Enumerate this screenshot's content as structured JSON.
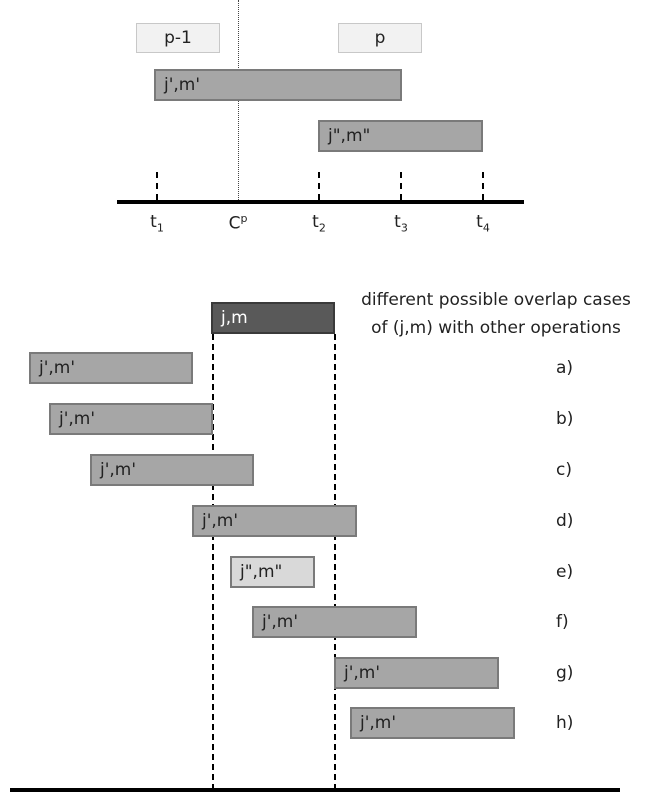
{
  "top": {
    "periods": {
      "prev": "p-1",
      "cur": "p"
    },
    "ops": {
      "a": "j',m'",
      "b": "j\",m\""
    },
    "ticks": [
      {
        "base": "t",
        "sub": "1",
        "sup": ""
      },
      {
        "base": "C",
        "sub": "",
        "sup": "p"
      },
      {
        "base": "t",
        "sub": "2",
        "sup": ""
      },
      {
        "base": "t",
        "sub": "3",
        "sup": ""
      },
      {
        "base": "t",
        "sub": "4",
        "sup": ""
      }
    ]
  },
  "bottom": {
    "main_op": "j,m",
    "caption_line1": "different possible overlap cases",
    "caption_line2": "of (j,m) with other operations",
    "cases": [
      {
        "op": "j',m'",
        "label": "a)"
      },
      {
        "op": "j',m'",
        "label": "b)"
      },
      {
        "op": "j',m'",
        "label": "c)"
      },
      {
        "op": "j',m'",
        "label": "d)"
      },
      {
        "op": "j\",m\"",
        "label": "e)"
      },
      {
        "op": "j',m'",
        "label": "f)"
      },
      {
        "op": "j',m'",
        "label": "g)"
      },
      {
        "op": "j',m'",
        "label": "h)"
      }
    ]
  }
}
